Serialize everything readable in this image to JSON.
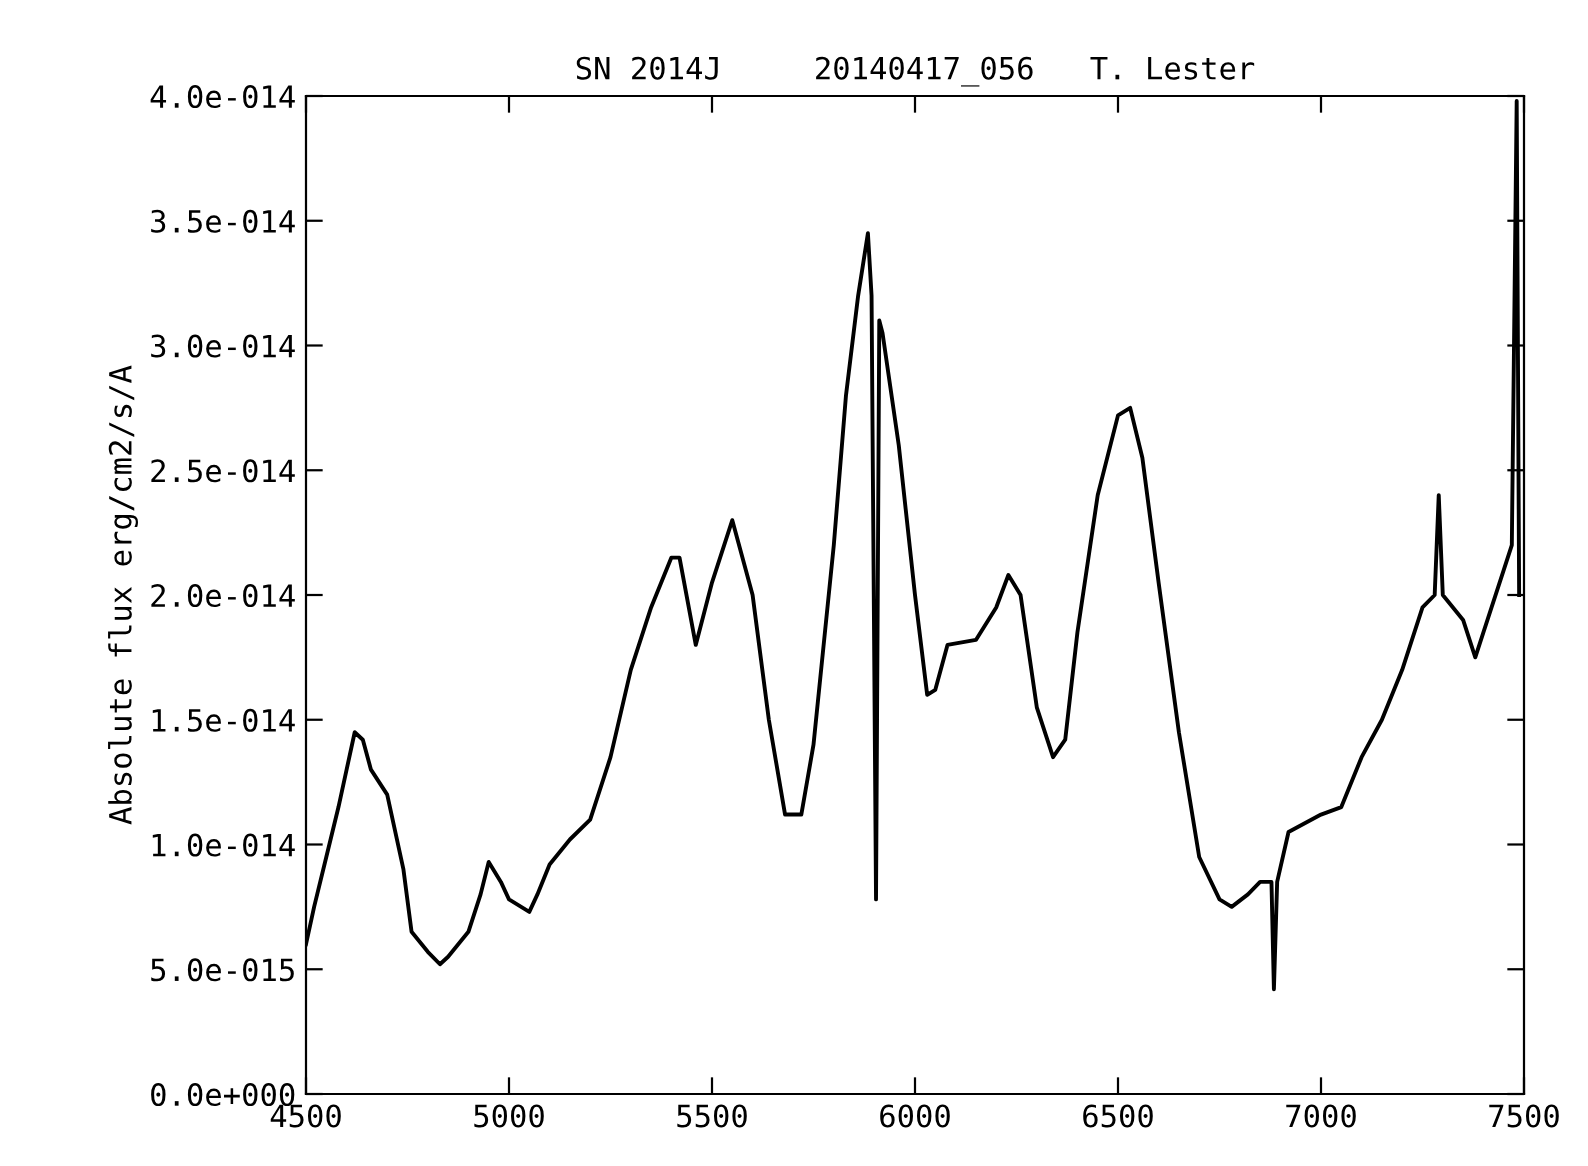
{
  "chart_data": {
    "type": "line",
    "title": "SN 2014J     20140417_056   T. Lester",
    "ylabel": "Absolute flux erg/cm2/s/A",
    "x": [
      4500,
      4520,
      4550,
      4580,
      4600,
      4620,
      4640,
      4660,
      4700,
      4740,
      4760,
      4800,
      4830,
      4850,
      4900,
      4930,
      4950,
      4980,
      5000,
      5050,
      5070,
      5100,
      5150,
      5200,
      5250,
      5300,
      5350,
      5400,
      5420,
      5460,
      5500,
      5550,
      5600,
      5640,
      5680,
      5720,
      5750,
      5800,
      5830,
      5860,
      5884,
      5893,
      5904,
      5912,
      5920,
      5960,
      6000,
      6030,
      6050,
      6080,
      6150,
      6200,
      6230,
      6260,
      6300,
      6340,
      6370,
      6400,
      6450,
      6500,
      6530,
      6560,
      6600,
      6650,
      6700,
      6750,
      6780,
      6820,
      6850,
      6878,
      6884,
      6892,
      6920,
      7000,
      7050,
      7100,
      7150,
      7200,
      7250,
      7280,
      7290,
      7300,
      7350,
      7380,
      7400,
      7450,
      7470,
      7482,
      7488
    ],
    "series": [
      {
        "color": "#000000",
        "values": [
          6e-15,
          7.5e-15,
          9.5e-15,
          1.15e-14,
          1.3e-14,
          1.45e-14,
          1.42e-14,
          1.3e-14,
          1.2e-14,
          9e-15,
          6.5e-15,
          5.7e-15,
          5.2e-15,
          5.5e-15,
          6.5e-15,
          8e-15,
          9.3e-15,
          8.5e-15,
          7.8e-15,
          7.3e-15,
          8e-15,
          9.2e-15,
          1.02e-14,
          1.1e-14,
          1.35e-14,
          1.7e-14,
          1.95e-14,
          2.15e-14,
          2.15e-14,
          1.8e-14,
          2.05e-14,
          2.3e-14,
          2e-14,
          1.5e-14,
          1.12e-14,
          1.12e-14,
          1.4e-14,
          2.2e-14,
          2.8e-14,
          3.2e-14,
          3.45e-14,
          3.2e-14,
          7.8e-15,
          3.1e-14,
          3.05e-14,
          2.6e-14,
          2e-14,
          1.6e-14,
          1.62e-14,
          1.8e-14,
          1.82e-14,
          1.95e-14,
          2.08e-14,
          2e-14,
          1.55e-14,
          1.35e-14,
          1.42e-14,
          1.85e-14,
          2.4e-14,
          2.72e-14,
          2.75e-14,
          2.55e-14,
          2.05e-14,
          1.45e-14,
          9.5e-15,
          7.8e-15,
          7.5e-15,
          8e-15,
          8.5e-15,
          8.5e-15,
          4.2e-15,
          8.5e-15,
          1.05e-14,
          1.12e-14,
          1.15e-14,
          1.35e-14,
          1.5e-14,
          1.7e-14,
          1.95e-14,
          2e-14,
          2.4e-14,
          2e-14,
          1.9e-14,
          1.75e-14,
          1.85e-14,
          2.1e-14,
          2.2e-14,
          3.98e-14,
          2e-14
        ]
      }
    ],
    "xlim": [
      4500,
      7500
    ],
    "xticks": [
      4500,
      5000,
      5500,
      6000,
      6500,
      7000,
      7500
    ],
    "ylim": [
      0,
      4e-14
    ],
    "yticks": [
      {
        "value": 0,
        "label": "0.0e+000"
      },
      {
        "value": 5e-15,
        "label": "5.0e-015"
      },
      {
        "value": 1e-14,
        "label": "1.0e-014"
      },
      {
        "value": 1.5e-14,
        "label": "1.5e-014"
      },
      {
        "value": 2e-14,
        "label": "2.0e-014"
      },
      {
        "value": 2.5e-14,
        "label": "2.5e-014"
      },
      {
        "value": 3e-14,
        "label": "3.0e-014"
      },
      {
        "value": 3.5e-14,
        "label": "3.5e-014"
      },
      {
        "value": 4e-14,
        "label": "4.0e-014"
      }
    ],
    "grid": false,
    "legend": false
  }
}
